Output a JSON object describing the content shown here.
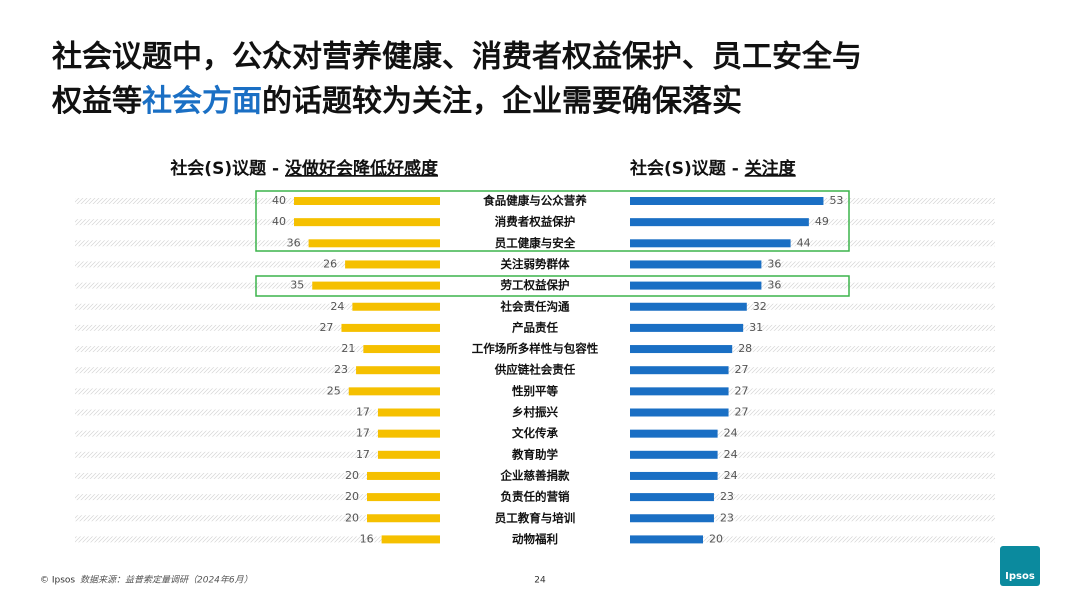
{
  "header": {
    "title_line1": "社会议题中，公众对营养健康、消费者权益保护、员工安全与",
    "title_line2_a": "权益等",
    "title_line2_highlight": "社会方面",
    "title_line2_b": "的话题较为关注，企业需要确保落实"
  },
  "chart_data": {
    "type": "butterfly",
    "left_title_prefix": "社会(S)议题 - ",
    "left_title_main": "没做好会降低好感度",
    "right_title_prefix": "社会(S)议题 - ",
    "right_title_main": "关注度",
    "categories": [
      "食品健康与公众营养",
      "消费者权益保护",
      "员工健康与安全",
      "关注弱势群体",
      "劳工权益保护",
      "社会责任沟通",
      "产品责任",
      "工作场所多样性与包容性",
      "供应链社会责任",
      "性别平等",
      "乡村振兴",
      "文化传承",
      "教育助学",
      "企业慈善捐款",
      "负责任的营销",
      "员工教育与培训",
      "动物福利"
    ],
    "series": [
      {
        "name": "没做好会降低好感度",
        "color": "#f5c000",
        "values": [
          40,
          40,
          36,
          26,
          35,
          24,
          27,
          21,
          23,
          25,
          17,
          17,
          17,
          20,
          20,
          20,
          16
        ]
      },
      {
        "name": "关注度",
        "color": "#1a6fc4",
        "values": [
          53,
          49,
          44,
          36,
          36,
          32,
          31,
          28,
          27,
          27,
          27,
          24,
          24,
          24,
          23,
          23,
          20
        ]
      }
    ]
  },
  "footer": {
    "copyright": "© Ipsos",
    "source": "数据来源：益普索定量调研（2024年6月）",
    "page": "24",
    "logo": "Ipsos"
  }
}
